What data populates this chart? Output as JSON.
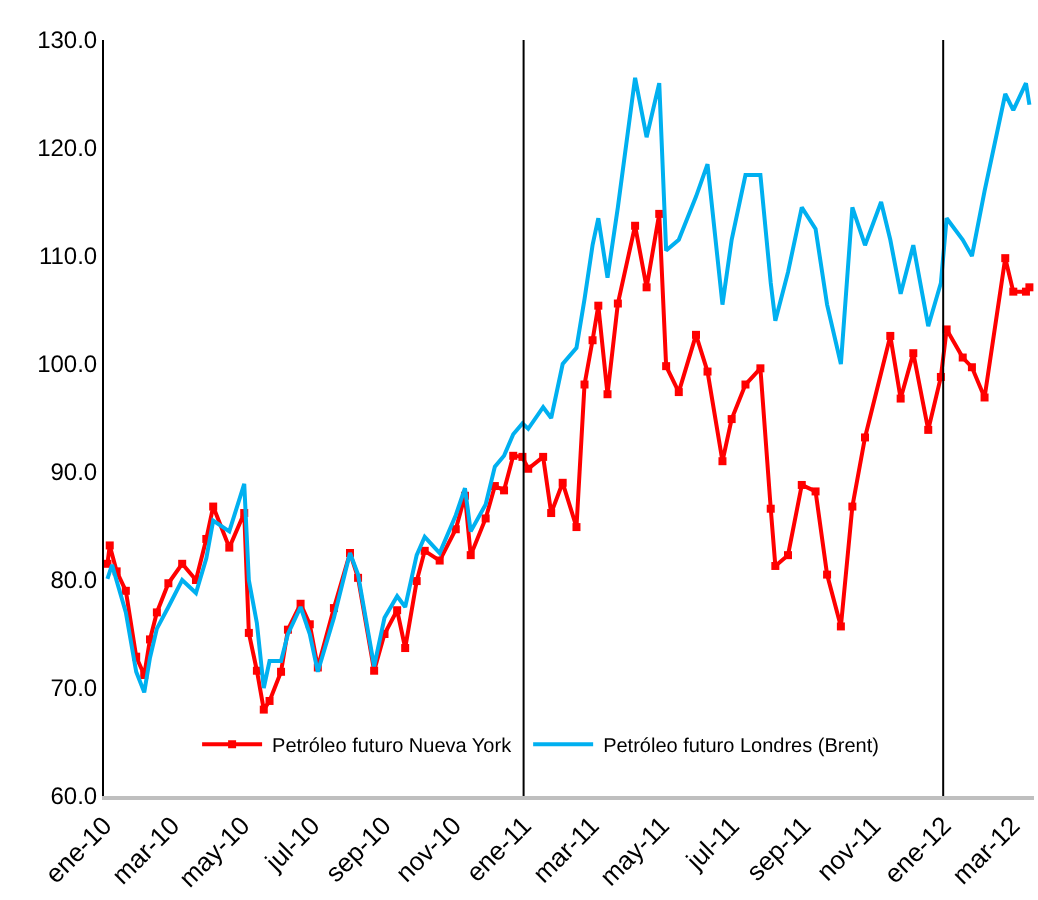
{
  "chart_data": {
    "type": "line",
    "xlim": [
      "2010-01-01",
      "2012-03-20"
    ],
    "xticks": [
      {
        "value": "2010-01-01",
        "label": "ene-10"
      },
      {
        "value": "2010-03-01",
        "label": "mar-10"
      },
      {
        "value": "2010-05-01",
        "label": "may-10"
      },
      {
        "value": "2010-07-01",
        "label": "jul-10"
      },
      {
        "value": "2010-09-01",
        "label": "sep-10"
      },
      {
        "value": "2010-11-01",
        "label": "nov-10"
      },
      {
        "value": "2011-01-01",
        "label": "ene-11"
      },
      {
        "value": "2011-03-01",
        "label": "mar-11"
      },
      {
        "value": "2011-05-01",
        "label": "may-11"
      },
      {
        "value": "2011-07-01",
        "label": "jul-11"
      },
      {
        "value": "2011-09-01",
        "label": "sep-11"
      },
      {
        "value": "2011-11-01",
        "label": "nov-11"
      },
      {
        "value": "2012-01-01",
        "label": "ene-12"
      },
      {
        "value": "2012-03-01",
        "label": "mar-12"
      }
    ],
    "ylim": [
      60,
      130
    ],
    "yticks": [
      {
        "value": 60,
        "label": "60.0"
      },
      {
        "value": 70,
        "label": "70.0"
      },
      {
        "value": 80,
        "label": "80.0"
      },
      {
        "value": 90,
        "label": "90.0"
      },
      {
        "value": 100,
        "label": "100.0"
      },
      {
        "value": 110,
        "label": "110.0"
      },
      {
        "value": 120,
        "label": "120.0"
      },
      {
        "value": 130,
        "label": "130.0"
      }
    ],
    "legend": "bottom",
    "ref_lines": [
      {
        "axis": "x",
        "value": "2011-01-01",
        "color": "#000000"
      },
      {
        "axis": "x",
        "value": "2012-01-01",
        "color": "#000000"
      }
    ],
    "series": [
      {
        "name": "Petróleo futuro Nueva York",
        "color": "#ff0000",
        "marker": "square",
        "x": [
          "2010-01-04",
          "2010-01-06",
          "2010-01-12",
          "2010-01-20",
          "2010-01-29",
          "2010-02-05",
          "2010-02-10",
          "2010-02-16",
          "2010-02-26",
          "2010-03-10",
          "2010-03-22",
          "2010-03-31",
          "2010-04-06",
          "2010-04-20",
          "2010-05-03",
          "2010-05-07",
          "2010-05-14",
          "2010-05-20",
          "2010-05-25",
          "2010-06-04",
          "2010-06-10",
          "2010-06-21",
          "2010-06-29",
          "2010-07-06",
          "2010-07-20",
          "2010-08-03",
          "2010-08-10",
          "2010-08-24",
          "2010-09-02",
          "2010-09-13",
          "2010-09-20",
          "2010-09-30",
          "2010-10-07",
          "2010-10-20",
          "2010-11-03",
          "2010-11-11",
          "2010-11-16",
          "2010-11-29",
          "2010-12-07",
          "2010-12-15",
          "2010-12-23",
          "2010-12-31",
          "2011-01-05",
          "2011-01-18",
          "2011-01-25",
          "2011-02-04",
          "2011-02-16",
          "2011-02-23",
          "2011-03-02",
          "2011-03-07",
          "2011-03-15",
          "2011-03-24",
          "2011-04-08",
          "2011-04-18",
          "2011-04-29",
          "2011-05-05",
          "2011-05-16",
          "2011-05-31",
          "2011-06-10",
          "2011-06-23",
          "2011-07-01",
          "2011-07-13",
          "2011-07-26",
          "2011-08-04",
          "2011-08-08",
          "2011-08-19",
          "2011-08-31",
          "2011-09-12",
          "2011-09-22",
          "2011-10-04",
          "2011-10-14",
          "2011-10-25",
          "2011-11-16",
          "2011-11-25",
          "2011-12-06",
          "2011-12-19",
          "2011-12-30",
          "2012-01-04",
          "2012-01-18",
          "2012-01-26",
          "2012-02-06",
          "2012-02-24",
          "2012-03-02",
          "2012-03-13",
          "2012-03-16"
        ],
        "values": [
          81.5,
          83.2,
          80.8,
          79.0,
          72.9,
          71.2,
          74.5,
          77.0,
          79.7,
          81.5,
          80.0,
          83.8,
          86.8,
          83.0,
          86.2,
          75.1,
          71.6,
          68.0,
          68.8,
          71.5,
          75.4,
          77.8,
          75.9,
          71.9,
          77.4,
          82.5,
          80.2,
          71.6,
          75.0,
          77.2,
          73.7,
          79.9,
          82.7,
          81.8,
          84.7,
          87.8,
          82.3,
          85.7,
          88.7,
          88.3,
          91.5,
          91.4,
          90.3,
          91.4,
          86.2,
          89.0,
          84.9,
          98.1,
          102.2,
          105.4,
          97.2,
          105.6,
          112.8,
          107.1,
          113.9,
          99.8,
          97.4,
          102.7,
          99.3,
          91.0,
          94.9,
          98.1,
          99.6,
          86.6,
          81.3,
          82.3,
          88.8,
          88.2,
          80.5,
          75.7,
          86.8,
          93.2,
          102.6,
          96.8,
          101.0,
          93.9,
          98.8,
          103.2,
          100.6,
          99.7,
          96.9,
          109.8,
          106.7,
          106.7,
          107.1
        ]
      },
      {
        "name": "Petróleo futuro Londres (Brent)",
        "color": "#00b0f0",
        "x": [
          "2010-01-04",
          "2010-01-08",
          "2010-01-20",
          "2010-01-29",
          "2010-02-05",
          "2010-02-10",
          "2010-02-16",
          "2010-02-26",
          "2010-03-10",
          "2010-03-22",
          "2010-03-31",
          "2010-04-06",
          "2010-04-20",
          "2010-05-03",
          "2010-05-07",
          "2010-05-14",
          "2010-05-20",
          "2010-05-25",
          "2010-06-04",
          "2010-06-10",
          "2010-06-21",
          "2010-06-29",
          "2010-07-06",
          "2010-07-20",
          "2010-08-03",
          "2010-08-10",
          "2010-08-24",
          "2010-09-02",
          "2010-09-13",
          "2010-09-20",
          "2010-09-30",
          "2010-10-07",
          "2010-10-20",
          "2010-11-03",
          "2010-11-11",
          "2010-11-16",
          "2010-11-29",
          "2010-12-07",
          "2010-12-15",
          "2010-12-23",
          "2010-12-31",
          "2011-01-05",
          "2011-01-18",
          "2011-01-25",
          "2011-02-04",
          "2011-02-16",
          "2011-02-23",
          "2011-03-02",
          "2011-03-07",
          "2011-03-15",
          "2011-03-24",
          "2011-04-08",
          "2011-04-18",
          "2011-04-29",
          "2011-05-05",
          "2011-05-16",
          "2011-05-31",
          "2011-06-10",
          "2011-06-23",
          "2011-07-01",
          "2011-07-13",
          "2011-07-26",
          "2011-08-04",
          "2011-08-08",
          "2011-08-19",
          "2011-08-31",
          "2011-09-12",
          "2011-09-22",
          "2011-10-04",
          "2011-10-14",
          "2011-10-25",
          "2011-11-08",
          "2011-11-16",
          "2011-11-25",
          "2011-12-06",
          "2011-12-19",
          "2011-12-30",
          "2012-01-04",
          "2012-01-18",
          "2012-01-26",
          "2012-02-06",
          "2012-02-24",
          "2012-03-02",
          "2012-03-13",
          "2012-03-16"
        ],
        "values": [
          80.1,
          81.4,
          77.0,
          71.5,
          69.6,
          72.8,
          75.5,
          77.5,
          80.0,
          78.8,
          82.0,
          85.5,
          84.5,
          88.9,
          80.0,
          76.0,
          70.0,
          72.5,
          72.5,
          75.0,
          77.5,
          75.0,
          71.5,
          76.5,
          82.5,
          80.5,
          72.0,
          76.5,
          78.5,
          77.5,
          82.3,
          84.0,
          82.5,
          86.0,
          88.5,
          84.5,
          87.0,
          90.5,
          91.5,
          93.5,
          94.5,
          94.0,
          96.0,
          95.0,
          100.0,
          101.5,
          106.0,
          111.0,
          113.5,
          108.0,
          114.5,
          126.5,
          121.0,
          126.0,
          110.5,
          111.5,
          115.5,
          118.5,
          105.5,
          111.5,
          117.5,
          117.5,
          107.5,
          104.0,
          108.5,
          114.5,
          112.5,
          105.5,
          100.0,
          114.5,
          111.0,
          115.0,
          111.5,
          106.5,
          111.0,
          103.5,
          107.5,
          113.5,
          111.5,
          110.0,
          116.0,
          125.0,
          123.5,
          126.0,
          124.0
        ]
      }
    ]
  }
}
